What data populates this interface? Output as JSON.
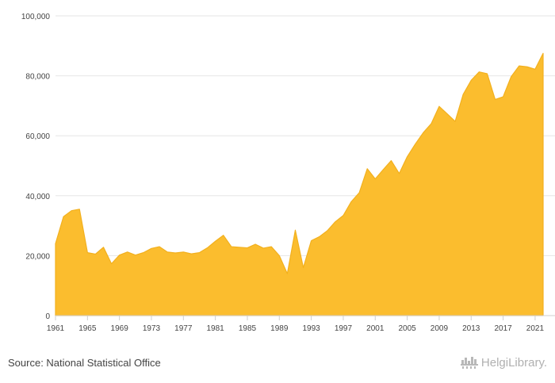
{
  "source": {
    "text": "Source: National Statistical Office"
  },
  "branding": {
    "logo_text": "HelgiLibrary.",
    "logo_icon": "city-skyline-icon"
  },
  "chart_data": {
    "type": "area",
    "title": "",
    "xlabel": "",
    "ylabel": "",
    "fill_color": "#fbbd2e",
    "line_color": "#f2b01e",
    "grid": true,
    "legend": "none",
    "xlim": [
      1961,
      2022
    ],
    "ylim": [
      0,
      100000
    ],
    "x_ticks": [
      1961,
      1965,
      1969,
      1973,
      1977,
      1981,
      1985,
      1989,
      1993,
      1997,
      2001,
      2005,
      2009,
      2013,
      2017,
      2021
    ],
    "y_ticks": [
      {
        "value": 0,
        "label": "0"
      },
      {
        "value": 20000,
        "label": "20,000"
      },
      {
        "value": 40000,
        "label": "40,000"
      },
      {
        "value": 60000,
        "label": "60,000"
      },
      {
        "value": 80000,
        "label": "80,000"
      },
      {
        "value": 100000,
        "label": "100,000"
      }
    ],
    "x": [
      1961,
      1962,
      1963,
      1964,
      1965,
      1966,
      1967,
      1968,
      1969,
      1970,
      1971,
      1972,
      1973,
      1974,
      1975,
      1976,
      1977,
      1978,
      1979,
      1980,
      1981,
      1982,
      1983,
      1984,
      1985,
      1986,
      1987,
      1988,
      1989,
      1990,
      1991,
      1992,
      1993,
      1994,
      1995,
      1996,
      1997,
      1998,
      1999,
      2000,
      2001,
      2002,
      2003,
      2004,
      2005,
      2006,
      2007,
      2008,
      2009,
      2010,
      2011,
      2012,
      2013,
      2014,
      2015,
      2016,
      2017,
      2018,
      2019,
      2020,
      2021,
      2022
    ],
    "values": [
      24000,
      33000,
      35000,
      35500,
      21000,
      20500,
      22800,
      17300,
      20200,
      21200,
      20200,
      21000,
      22400,
      23000,
      21200,
      20900,
      21200,
      20600,
      21000,
      22600,
      24800,
      26800,
      23000,
      22800,
      22600,
      23800,
      22500,
      23000,
      20000,
      14000,
      28500,
      16000,
      25000,
      26300,
      28300,
      31300,
      33400,
      38000,
      41000,
      49000,
      45600,
      48700,
      51700,
      47400,
      53000,
      57200,
      61000,
      64000,
      69800,
      67300,
      64800,
      73800,
      78500,
      81300,
      80700,
      72100,
      73000,
      79700,
      83300,
      83000,
      82200,
      87500
    ]
  }
}
